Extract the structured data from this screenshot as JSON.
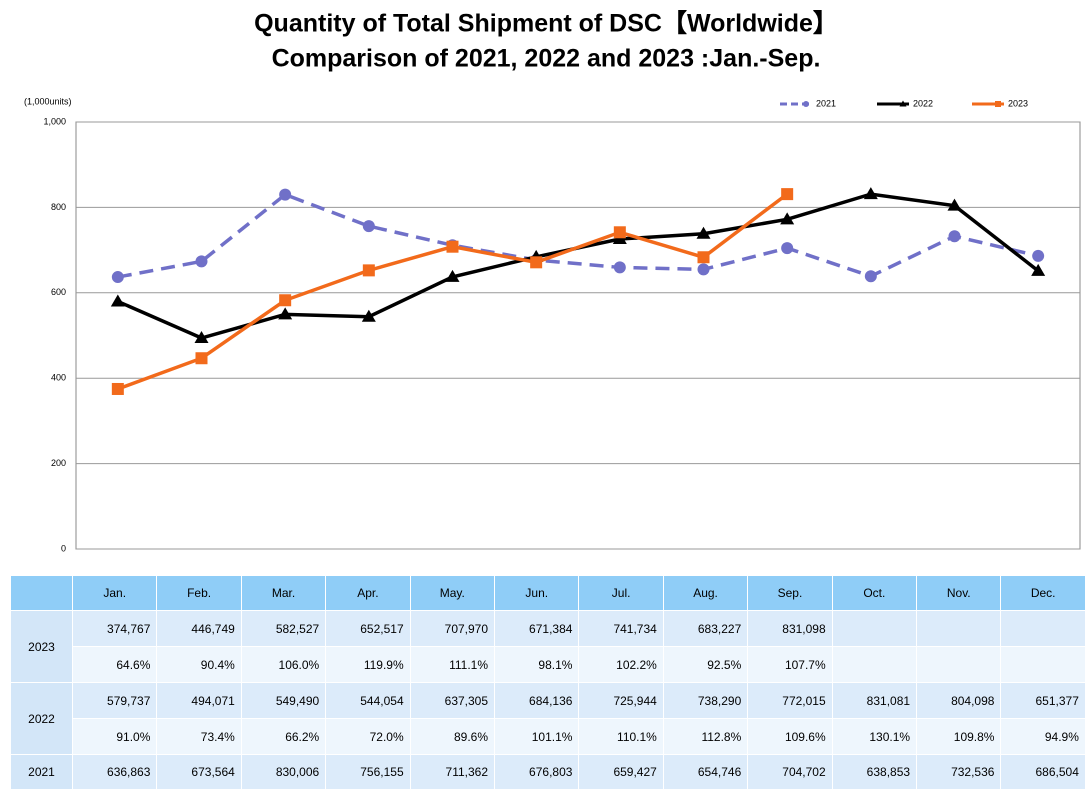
{
  "chart_data": {
    "type": "line",
    "title": "Quantity of Total Shipment of DSC【Worldwide】",
    "subtitle": "Comparison of 2021, 2022 and 2023 :Jan.-Sep.",
    "y_label": "(1,000units)",
    "categories": [
      "Jan.",
      "Feb.",
      "Mar.",
      "Apr.",
      "May.",
      "Jun.",
      "Jul.",
      "Aug.",
      "Sep.",
      "Oct.",
      "Nov.",
      "Dec."
    ],
    "ylim": [
      0,
      1000
    ],
    "yticks": [
      0,
      200,
      400,
      600,
      800,
      {
        "value": 1000,
        "label": "1,000"
      }
    ],
    "grid": true,
    "legend": "top-right",
    "series": [
      {
        "name": "2021",
        "color": "#7070c8",
        "dash": true,
        "marker": "circle",
        "values": [
          636.863,
          673.564,
          830.006,
          756.155,
          711.362,
          676.803,
          659.427,
          654.746,
          704.702,
          638.853,
          732.536,
          686.504
        ],
        "value_labels": [
          "636,863",
          "673,564",
          "830,006",
          "756,155",
          "711,362",
          "676,803",
          "659,427",
          "654,746",
          "704,702",
          "638,853",
          "732,536",
          "686,504"
        ]
      },
      {
        "name": "2022",
        "color": "#000000",
        "dash": false,
        "marker": "triangle",
        "values": [
          579.737,
          494.071,
          549.49,
          544.054,
          637.305,
          684.136,
          725.944,
          738.29,
          772.015,
          831.081,
          804.098,
          651.377
        ],
        "value_labels": [
          "579,737",
          "494,071",
          "549,490",
          "544,054",
          "637,305",
          "684,136",
          "725,944",
          "738,290",
          "772,015",
          "831,081",
          "804,098",
          "651,377"
        ],
        "ratio_labels": [
          "91.0%",
          "73.4%",
          "66.2%",
          "72.0%",
          "89.6%",
          "101.1%",
          "110.1%",
          "112.8%",
          "109.6%",
          "130.1%",
          "109.8%",
          "94.9%"
        ]
      },
      {
        "name": "2023",
        "color": "#f26a1b",
        "dash": false,
        "marker": "square",
        "values": [
          374.767,
          446.749,
          582.527,
          652.517,
          707.97,
          671.384,
          741.734,
          683.227,
          831.098,
          null,
          null,
          null
        ],
        "value_labels": [
          "374,767",
          "446,749",
          "582,527",
          "652,517",
          "707,970",
          "671,384",
          "741,734",
          "683,227",
          "831,098",
          null,
          null,
          null
        ],
        "ratio_labels": [
          "64.6%",
          "90.4%",
          "106.0%",
          "119.9%",
          "111.1%",
          "98.1%",
          "102.2%",
          "92.5%",
          "107.7%",
          null,
          null,
          null
        ]
      }
    ]
  }
}
